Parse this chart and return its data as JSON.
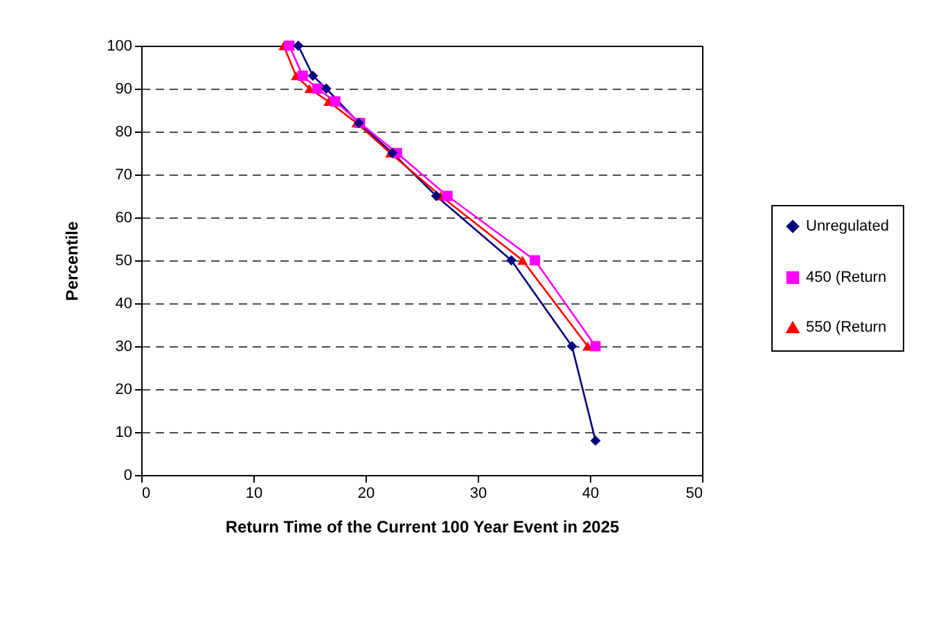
{
  "chart_data": {
    "type": "line",
    "xlabel": "Return Time of the Current 100 Year Event in 2025",
    "ylabel": "Percentile",
    "xlim": [
      0,
      50
    ],
    "xticks": [
      0,
      10,
      20,
      30,
      40,
      50
    ],
    "ylim": [
      0,
      100
    ],
    "yticks": [
      0,
      10,
      20,
      30,
      40,
      50,
      60,
      70,
      80,
      90,
      100
    ],
    "grid": "y",
    "legend": "right",
    "line_style": "solid",
    "series": [
      {
        "name": "Unregulated",
        "color": "#000080",
        "marker": "diamond",
        "x": [
          14.0,
          15.3,
          16.5,
          19.4,
          22.4,
          26.3,
          33.0,
          38.4,
          40.5
        ],
        "values": [
          100,
          93,
          90,
          82,
          75,
          65,
          50,
          30,
          8
        ]
      },
      {
        "name": "450 (Return",
        "color": "#ff00ff",
        "marker": "square",
        "x": [
          13.2,
          14.4,
          15.7,
          17.3,
          19.5,
          22.8,
          27.3,
          35.1,
          40.5
        ],
        "values": [
          100,
          93,
          90,
          87,
          82,
          75,
          65,
          50,
          30
        ]
      },
      {
        "name": "550 (Return",
        "color": "#ff0000",
        "marker": "triangle",
        "x": [
          12.7,
          13.8,
          15.0,
          16.7,
          19.2,
          22.2,
          26.7,
          34.0,
          39.8
        ],
        "values": [
          100,
          93,
          90,
          87,
          82,
          75,
          65,
          50,
          30
        ]
      }
    ]
  }
}
